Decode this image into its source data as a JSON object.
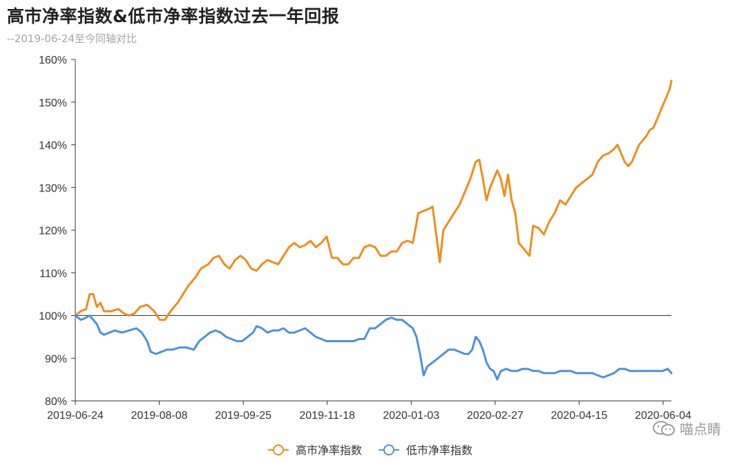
{
  "chart_data": {
    "type": "line",
    "title": "高市净率指数&低市净率指数过去一年回报",
    "subtitle": "--2019-06-24至今同轴对比",
    "ylim": [
      80,
      160
    ],
    "yticks": [
      "80%",
      "90%",
      "100%",
      "110%",
      "120%",
      "130%",
      "140%",
      "150%",
      "160%"
    ],
    "xticks": [
      "2019-06-24",
      "2019-08-08",
      "2019-09-25",
      "2019-11-18",
      "2020-01-03",
      "2020-02-27",
      "2020-04-15",
      "2020-06-04"
    ],
    "series": [
      {
        "name": "高市净率指数",
        "color": "#f08c1a",
        "values": [
          [
            0,
            100
          ],
          [
            3,
            101
          ],
          [
            6,
            101.5
          ],
          [
            8,
            105
          ],
          [
            10,
            105
          ],
          [
            12,
            102
          ],
          [
            14,
            103
          ],
          [
            16,
            101
          ],
          [
            20,
            101
          ],
          [
            24,
            101.5
          ],
          [
            27,
            100.5
          ],
          [
            30,
            100
          ],
          [
            33,
            100.5
          ],
          [
            36,
            102
          ],
          [
            40,
            102.5
          ],
          [
            44,
            101
          ],
          [
            47,
            99
          ],
          [
            50,
            99
          ],
          [
            53,
            101
          ],
          [
            57,
            103
          ],
          [
            60,
            105
          ],
          [
            63,
            107
          ],
          [
            67,
            109
          ],
          [
            70,
            111
          ],
          [
            74,
            112
          ],
          [
            77,
            113.5
          ],
          [
            80,
            114
          ],
          [
            83,
            112
          ],
          [
            86,
            111
          ],
          [
            89,
            113
          ],
          [
            92,
            114
          ],
          [
            95,
            113
          ],
          [
            98,
            111
          ],
          [
            101,
            110.5
          ],
          [
            104,
            112
          ],
          [
            107,
            113
          ],
          [
            110,
            112.5
          ],
          [
            113,
            112
          ],
          [
            116,
            114
          ],
          [
            119,
            116
          ],
          [
            122,
            117
          ],
          [
            125,
            116
          ],
          [
            128,
            116.5
          ],
          [
            131,
            117.5
          ],
          [
            134,
            116
          ],
          [
            137,
            117
          ],
          [
            140,
            118.5
          ],
          [
            143,
            113.5
          ],
          [
            146,
            113.5
          ],
          [
            149,
            112
          ],
          [
            152,
            112
          ],
          [
            155,
            113.5
          ],
          [
            158,
            113.5
          ],
          [
            161,
            116
          ],
          [
            164,
            116.5
          ],
          [
            167,
            116
          ],
          [
            170,
            114
          ],
          [
            173,
            114
          ],
          [
            176,
            115
          ],
          [
            179,
            115
          ],
          [
            182,
            117
          ],
          [
            185,
            117.5
          ],
          [
            188,
            117
          ],
          [
            191,
            124
          ],
          [
            194,
            124.5
          ],
          [
            197,
            125
          ],
          [
            199,
            125.5
          ],
          [
            201,
            119
          ],
          [
            203,
            112.5
          ],
          [
            205,
            120
          ],
          [
            208,
            122
          ],
          [
            211,
            124
          ],
          [
            214,
            126
          ],
          [
            217,
            129
          ],
          [
            220,
            132
          ],
          [
            223,
            136
          ],
          [
            225,
            136.5
          ],
          [
            227,
            132
          ],
          [
            229,
            127
          ],
          [
            231,
            130
          ],
          [
            233,
            132
          ],
          [
            235,
            134
          ],
          [
            237,
            132
          ],
          [
            239,
            128
          ],
          [
            241,
            133
          ],
          [
            243,
            127
          ],
          [
            245,
            124
          ],
          [
            247,
            117
          ],
          [
            249,
            116
          ],
          [
            251,
            115
          ],
          [
            253,
            114
          ],
          [
            255,
            121
          ],
          [
            258,
            120.5
          ],
          [
            261,
            119
          ],
          [
            264,
            122
          ],
          [
            267,
            124
          ],
          [
            270,
            127
          ],
          [
            273,
            126
          ],
          [
            276,
            128
          ],
          [
            279,
            130
          ],
          [
            282,
            131
          ],
          [
            285,
            132
          ],
          [
            288,
            133
          ],
          [
            291,
            136
          ],
          [
            294,
            137.5
          ],
          [
            297,
            138
          ],
          [
            300,
            139
          ],
          [
            302,
            140
          ],
          [
            304,
            138
          ],
          [
            306,
            136
          ],
          [
            308,
            135
          ],
          [
            310,
            136
          ],
          [
            312,
            138
          ],
          [
            314,
            140
          ],
          [
            316,
            141
          ],
          [
            318,
            142
          ],
          [
            320,
            143.5
          ],
          [
            322,
            144
          ],
          [
            324,
            146
          ],
          [
            326,
            148
          ],
          [
            328,
            150
          ],
          [
            330,
            152
          ],
          [
            331,
            153
          ],
          [
            332,
            155
          ]
        ]
      },
      {
        "name": "低市净率指数",
        "color": "#4a90e2",
        "values": [
          [
            0,
            100
          ],
          [
            3,
            99
          ],
          [
            6,
            99.5
          ],
          [
            8,
            100
          ],
          [
            10,
            99
          ],
          [
            12,
            98
          ],
          [
            14,
            96
          ],
          [
            16,
            95.5
          ],
          [
            19,
            96
          ],
          [
            22,
            96.5
          ],
          [
            26,
            96
          ],
          [
            30,
            96.5
          ],
          [
            34,
            97
          ],
          [
            37,
            96
          ],
          [
            40,
            94
          ],
          [
            42,
            91.5
          ],
          [
            45,
            91
          ],
          [
            48,
            91.5
          ],
          [
            51,
            92
          ],
          [
            54,
            92
          ],
          [
            58,
            92.5
          ],
          [
            62,
            92.5
          ],
          [
            66,
            92
          ],
          [
            69,
            94
          ],
          [
            72,
            95
          ],
          [
            75,
            96
          ],
          [
            78,
            96.5
          ],
          [
            81,
            96
          ],
          [
            84,
            95
          ],
          [
            87,
            94.5
          ],
          [
            90,
            94
          ],
          [
            93,
            94
          ],
          [
            96,
            95
          ],
          [
            99,
            96
          ],
          [
            101,
            97.5
          ],
          [
            104,
            97
          ],
          [
            107,
            96
          ],
          [
            110,
            96.5
          ],
          [
            113,
            96.5
          ],
          [
            116,
            97
          ],
          [
            119,
            96
          ],
          [
            122,
            96
          ],
          [
            125,
            96.5
          ],
          [
            128,
            97
          ],
          [
            131,
            96
          ],
          [
            134,
            95
          ],
          [
            137,
            94.5
          ],
          [
            140,
            94
          ],
          [
            143,
            94
          ],
          [
            146,
            94
          ],
          [
            149,
            94
          ],
          [
            152,
            94
          ],
          [
            155,
            94
          ],
          [
            158,
            94.5
          ],
          [
            161,
            94.5
          ],
          [
            164,
            97
          ],
          [
            167,
            97
          ],
          [
            170,
            98
          ],
          [
            173,
            99
          ],
          [
            176,
            99.5
          ],
          [
            179,
            99
          ],
          [
            182,
            99
          ],
          [
            185,
            98
          ],
          [
            188,
            97
          ],
          [
            190,
            95
          ],
          [
            192,
            91
          ],
          [
            194,
            86
          ],
          [
            196,
            88
          ],
          [
            199,
            89
          ],
          [
            202,
            90
          ],
          [
            205,
            91
          ],
          [
            208,
            92
          ],
          [
            211,
            92
          ],
          [
            214,
            91.5
          ],
          [
            217,
            91
          ],
          [
            219,
            91
          ],
          [
            221,
            92
          ],
          [
            223,
            95
          ],
          [
            225,
            94
          ],
          [
            227,
            92
          ],
          [
            229,
            89
          ],
          [
            231,
            87.5
          ],
          [
            233,
            87
          ],
          [
            235,
            85
          ],
          [
            237,
            87
          ],
          [
            240,
            87.5
          ],
          [
            243,
            87
          ],
          [
            246,
            87
          ],
          [
            249,
            87.5
          ],
          [
            252,
            87.5
          ],
          [
            255,
            87
          ],
          [
            258,
            87
          ],
          [
            261,
            86.5
          ],
          [
            264,
            86.5
          ],
          [
            267,
            86.5
          ],
          [
            270,
            87
          ],
          [
            273,
            87
          ],
          [
            276,
            87
          ],
          [
            279,
            86.5
          ],
          [
            282,
            86.5
          ],
          [
            285,
            86.5
          ],
          [
            288,
            86.5
          ],
          [
            291,
            86
          ],
          [
            294,
            85.5
          ],
          [
            297,
            86
          ],
          [
            300,
            86.5
          ],
          [
            303,
            87.5
          ],
          [
            306,
            87.5
          ],
          [
            309,
            87
          ],
          [
            312,
            87
          ],
          [
            315,
            87
          ],
          [
            318,
            87
          ],
          [
            321,
            87
          ],
          [
            324,
            87
          ],
          [
            327,
            87
          ],
          [
            330,
            87.5
          ],
          [
            332,
            86.5
          ]
        ]
      }
    ],
    "x_count": 332,
    "legend_position": "bottom-center",
    "grid": false
  },
  "watermark": {
    "text": "喵点睛",
    "icon": "wechat-icon"
  }
}
